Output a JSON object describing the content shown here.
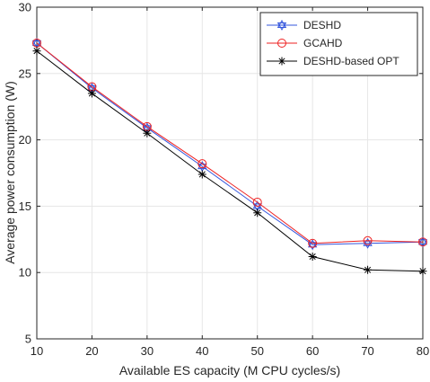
{
  "chart_data": {
    "type": "line",
    "xlabel": "Available ES capacity (M CPU cycles/s)",
    "ylabel": "Average power consumption (W)",
    "x": [
      10,
      20,
      30,
      40,
      50,
      60,
      70,
      80
    ],
    "xlim": [
      10,
      80
    ],
    "ylim": [
      5,
      30
    ],
    "xticks": [
      "10",
      "20",
      "30",
      "40",
      "50",
      "60",
      "70",
      "80"
    ],
    "yticks": [
      "5",
      "10",
      "15",
      "20",
      "25",
      "30"
    ],
    "grid": true,
    "legend_position": "top-right",
    "series": [
      {
        "name": "DESHD",
        "values": [
          27.3,
          23.9,
          20.9,
          18.0,
          15.0,
          12.1,
          12.2,
          12.3
        ],
        "color": "#3355dd",
        "marker": "hexagram"
      },
      {
        "name": "GCAHD",
        "values": [
          27.3,
          24.0,
          21.0,
          18.2,
          15.3,
          12.2,
          12.4,
          12.3
        ],
        "color": "#ee2222",
        "marker": "circle"
      },
      {
        "name": "DESHD-based OPT",
        "values": [
          26.7,
          23.5,
          20.5,
          17.4,
          14.5,
          11.2,
          10.2,
          10.1
        ],
        "color": "#000000",
        "marker": "asterisk"
      }
    ]
  }
}
